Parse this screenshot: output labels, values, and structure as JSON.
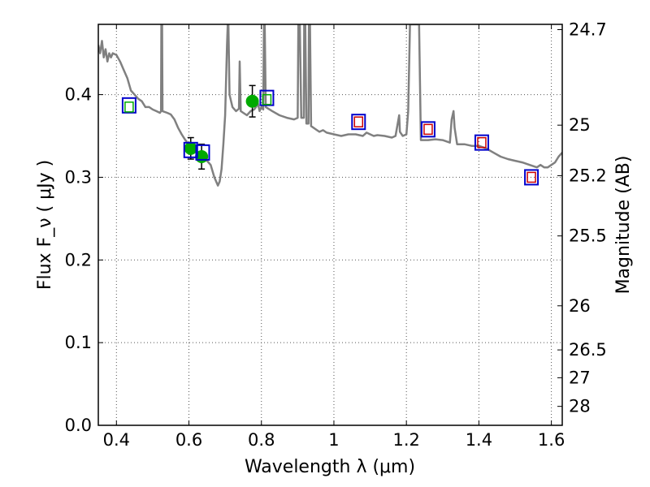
{
  "chart_data": {
    "type": "scatter",
    "xlabel": "Wavelength  λ (μm)",
    "ylabel": "Flux  F_ν  ( μJy )",
    "y2label": "Magnitude (AB)",
    "xlim": [
      0.35,
      1.63
    ],
    "ylim": [
      0.0,
      0.485
    ],
    "grid": true,
    "x_ticks": [
      {
        "value": 0.4,
        "label": "0.4"
      },
      {
        "value": 0.6,
        "label": "0.6"
      },
      {
        "value": 0.8,
        "label": "0.8"
      },
      {
        "value": 1.0,
        "label": "1"
      },
      {
        "value": 1.2,
        "label": "1.2"
      },
      {
        "value": 1.4,
        "label": "1.4"
      },
      {
        "value": 1.6,
        "label": "1.6"
      }
    ],
    "y_ticks": [
      {
        "value": 0.0,
        "label": "0.0"
      },
      {
        "value": 0.1,
        "label": "0.1"
      },
      {
        "value": 0.2,
        "label": "0.2"
      },
      {
        "value": 0.3,
        "label": "0.3"
      },
      {
        "value": 0.4,
        "label": "0.4"
      }
    ],
    "mag_ticks": [
      {
        "value": 24.7,
        "label": "24.7"
      },
      {
        "value": 25.0,
        "label": "25"
      },
      {
        "value": 25.2,
        "label": "25.2"
      },
      {
        "value": 25.5,
        "label": "25.5"
      },
      {
        "value": 26.0,
        "label": "26"
      },
      {
        "value": 26.5,
        "label": "26.5"
      },
      {
        "value": 27.0,
        "label": "27"
      },
      {
        "value": 28.0,
        "label": "28"
      }
    ],
    "colors": {
      "model_sed": "#808080",
      "observed_point": "#00aa00",
      "model_box": "#0000cc",
      "photometry_box_red": "#cc0000",
      "photometry_box_green": "#00aa00",
      "grid": "#555555"
    },
    "series": [
      {
        "type": "line",
        "points": [
          [
            0.35,
            0.46
          ],
          [
            0.355,
            0.45
          ],
          [
            0.36,
            0.465
          ],
          [
            0.365,
            0.445
          ],
          [
            0.37,
            0.455
          ],
          [
            0.375,
            0.44
          ],
          [
            0.38,
            0.45
          ],
          [
            0.385,
            0.445
          ],
          [
            0.39,
            0.45
          ],
          [
            0.4,
            0.448
          ],
          [
            0.41,
            0.44
          ],
          [
            0.42,
            0.43
          ],
          [
            0.43,
            0.42
          ],
          [
            0.44,
            0.405
          ],
          [
            0.45,
            0.4
          ],
          [
            0.46,
            0.395
          ],
          [
            0.47,
            0.392
          ],
          [
            0.48,
            0.385
          ],
          [
            0.49,
            0.385
          ],
          [
            0.5,
            0.382
          ],
          [
            0.51,
            0.38
          ],
          [
            0.52,
            0.378
          ],
          [
            0.523,
            0.38
          ],
          [
            0.524,
            0.485
          ],
          [
            0.526,
            0.485
          ],
          [
            0.527,
            0.38
          ],
          [
            0.54,
            0.378
          ],
          [
            0.55,
            0.376
          ],
          [
            0.56,
            0.37
          ],
          [
            0.57,
            0.36
          ],
          [
            0.58,
            0.352
          ],
          [
            0.59,
            0.345
          ],
          [
            0.6,
            0.34
          ],
          [
            0.61,
            0.335
          ],
          [
            0.62,
            0.33
          ],
          [
            0.63,
            0.325
          ],
          [
            0.64,
            0.322
          ],
          [
            0.65,
            0.32
          ],
          [
            0.66,
            0.315
          ],
          [
            0.67,
            0.3
          ],
          [
            0.68,
            0.29
          ],
          [
            0.685,
            0.295
          ],
          [
            0.69,
            0.31
          ],
          [
            0.695,
            0.34
          ],
          [
            0.7,
            0.375
          ],
          [
            0.705,
            0.46
          ],
          [
            0.707,
            0.485
          ],
          [
            0.709,
            0.485
          ],
          [
            0.712,
            0.4
          ],
          [
            0.72,
            0.385
          ],
          [
            0.73,
            0.38
          ],
          [
            0.738,
            0.383
          ],
          [
            0.74,
            0.44
          ],
          [
            0.743,
            0.38
          ],
          [
            0.75,
            0.378
          ],
          [
            0.76,
            0.375
          ],
          [
            0.77,
            0.38
          ],
          [
            0.78,
            0.382
          ],
          [
            0.785,
            0.385
          ],
          [
            0.79,
            0.39
          ],
          [
            0.795,
            0.38
          ],
          [
            0.8,
            0.385
          ],
          [
            0.805,
            0.382
          ],
          [
            0.807,
            0.485
          ],
          [
            0.809,
            0.485
          ],
          [
            0.812,
            0.385
          ],
          [
            0.83,
            0.38
          ],
          [
            0.85,
            0.375
          ],
          [
            0.87,
            0.372
          ],
          [
            0.89,
            0.37
          ],
          [
            0.9,
            0.372
          ],
          [
            0.902,
            0.485
          ],
          [
            0.906,
            0.485
          ],
          [
            0.91,
            0.372
          ],
          [
            0.917,
            0.372
          ],
          [
            0.918,
            0.485
          ],
          [
            0.921,
            0.485
          ],
          [
            0.924,
            0.365
          ],
          [
            0.93,
            0.365
          ],
          [
            0.931,
            0.485
          ],
          [
            0.934,
            0.485
          ],
          [
            0.937,
            0.362
          ],
          [
            0.95,
            0.358
          ],
          [
            0.96,
            0.355
          ],
          [
            0.97,
            0.357
          ],
          [
            0.98,
            0.354
          ],
          [
            1.0,
            0.352
          ],
          [
            1.02,
            0.35
          ],
          [
            1.04,
            0.352
          ],
          [
            1.06,
            0.352
          ],
          [
            1.08,
            0.35
          ],
          [
            1.09,
            0.354
          ],
          [
            1.1,
            0.352
          ],
          [
            1.11,
            0.35
          ],
          [
            1.12,
            0.351
          ],
          [
            1.14,
            0.35
          ],
          [
            1.16,
            0.348
          ],
          [
            1.17,
            0.35
          ],
          [
            1.18,
            0.375
          ],
          [
            1.182,
            0.355
          ],
          [
            1.19,
            0.35
          ],
          [
            1.2,
            0.352
          ],
          [
            1.205,
            0.38
          ],
          [
            1.21,
            0.485
          ],
          [
            1.225,
            0.485
          ],
          [
            1.235,
            0.485
          ],
          [
            1.24,
            0.345
          ],
          [
            1.26,
            0.345
          ],
          [
            1.28,
            0.346
          ],
          [
            1.3,
            0.345
          ],
          [
            1.32,
            0.342
          ],
          [
            1.325,
            0.37
          ],
          [
            1.33,
            0.38
          ],
          [
            1.333,
            0.36
          ],
          [
            1.34,
            0.34
          ],
          [
            1.36,
            0.34
          ],
          [
            1.38,
            0.338
          ],
          [
            1.4,
            0.338
          ],
          [
            1.42,
            0.335
          ],
          [
            1.44,
            0.33
          ],
          [
            1.46,
            0.325
          ],
          [
            1.48,
            0.322
          ],
          [
            1.5,
            0.32
          ],
          [
            1.52,
            0.318
          ],
          [
            1.54,
            0.315
          ],
          [
            1.56,
            0.312
          ],
          [
            1.57,
            0.315
          ],
          [
            1.58,
            0.312
          ],
          [
            1.59,
            0.312
          ],
          [
            1.6,
            0.315
          ],
          [
            1.61,
            0.318
          ],
          [
            1.62,
            0.325
          ],
          [
            1.63,
            0.33
          ]
        ]
      },
      {
        "type": "scatter",
        "marker": "filled_circle",
        "points": [
          {
            "x": 0.605,
            "y": 0.335,
            "yerr": 0.013
          },
          {
            "x": 0.635,
            "y": 0.325,
            "yerr": 0.015
          },
          {
            "x": 0.775,
            "y": 0.392,
            "yerr": 0.019
          }
        ]
      },
      {
        "type": "scatter",
        "marker": "open_square",
        "points": [
          {
            "x": 0.435,
            "y": 0.387
          },
          {
            "x": 0.605,
            "y": 0.333
          },
          {
            "x": 0.638,
            "y": 0.33
          },
          {
            "x": 0.815,
            "y": 0.396
          },
          {
            "x": 1.068,
            "y": 0.367
          },
          {
            "x": 1.26,
            "y": 0.358
          },
          {
            "x": 1.408,
            "y": 0.342
          },
          {
            "x": 1.545,
            "y": 0.3
          }
        ]
      },
      {
        "type": "scatter",
        "marker": "small_open_square",
        "points": [
          {
            "x": 0.435,
            "y": 0.385,
            "color_key": "photometry_box_green"
          },
          {
            "x": 0.815,
            "y": 0.394,
            "color_key": "photometry_box_green"
          },
          {
            "x": 1.068,
            "y": 0.367,
            "color_key": "photometry_box_red"
          },
          {
            "x": 1.26,
            "y": 0.358,
            "color_key": "photometry_box_red"
          },
          {
            "x": 1.408,
            "y": 0.342,
            "color_key": "photometry_box_red"
          },
          {
            "x": 1.545,
            "y": 0.3,
            "color_key": "photometry_box_red"
          }
        ]
      }
    ]
  }
}
